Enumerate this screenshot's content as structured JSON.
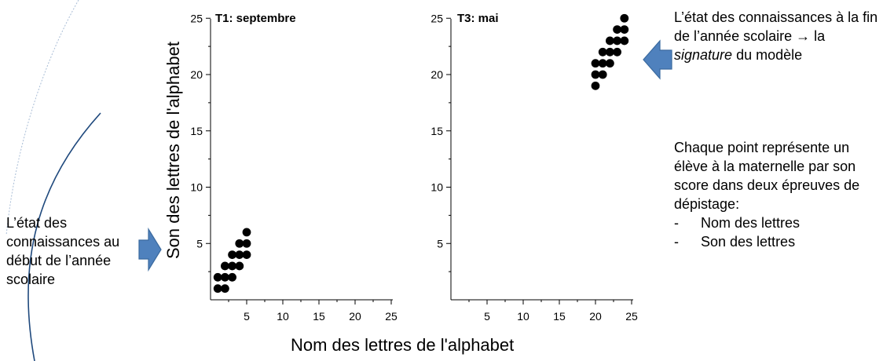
{
  "chart_data": [
    {
      "type": "scatter",
      "title": "T1: septembre",
      "xlim": [
        0,
        25
      ],
      "ylim": [
        0,
        25
      ],
      "x_ticks": [
        5,
        10,
        15,
        20,
        25
      ],
      "y_ticks": [
        5,
        10,
        15,
        20,
        25
      ],
      "points": [
        {
          "x": 1,
          "y": 1
        },
        {
          "x": 2,
          "y": 1
        },
        {
          "x": 1,
          "y": 2
        },
        {
          "x": 2,
          "y": 2
        },
        {
          "x": 3,
          "y": 2
        },
        {
          "x": 2,
          "y": 3
        },
        {
          "x": 3,
          "y": 3
        },
        {
          "x": 4,
          "y": 3
        },
        {
          "x": 3,
          "y": 4
        },
        {
          "x": 4,
          "y": 4
        },
        {
          "x": 5,
          "y": 4
        },
        {
          "x": 4,
          "y": 5
        },
        {
          "x": 5,
          "y": 5
        },
        {
          "x": 5,
          "y": 6
        }
      ]
    },
    {
      "type": "scatter",
      "title": "T3: mai",
      "xlim": [
        0,
        25
      ],
      "ylim": [
        0,
        25
      ],
      "x_ticks": [
        5,
        10,
        15,
        20,
        25
      ],
      "y_ticks": [
        5,
        10,
        15,
        20,
        25
      ],
      "points": [
        {
          "x": 20,
          "y": 19
        },
        {
          "x": 20,
          "y": 20
        },
        {
          "x": 21,
          "y": 20
        },
        {
          "x": 20,
          "y": 21
        },
        {
          "x": 21,
          "y": 21
        },
        {
          "x": 22,
          "y": 21
        },
        {
          "x": 21,
          "y": 22
        },
        {
          "x": 22,
          "y": 22
        },
        {
          "x": 23,
          "y": 22
        },
        {
          "x": 22,
          "y": 23
        },
        {
          "x": 23,
          "y": 23
        },
        {
          "x": 24,
          "y": 23
        },
        {
          "x": 23,
          "y": 24
        },
        {
          "x": 24,
          "y": 24
        },
        {
          "x": 24,
          "y": 25
        }
      ]
    }
  ],
  "axis_labels": {
    "x": "Nom des lettres de l'alphabet",
    "y": "Son des lettres de l'alphabet"
  },
  "annotations": {
    "left": "L’état des connaissances au début de l’année scolaire",
    "top_right": {
      "before": "L’état des connaissances à la fin de l’année scolaire → la ",
      "emphasis": "signature",
      "after": " du modèle"
    },
    "right": {
      "intro": "Chaque point représente un élève à la maternelle par son score dans deux épreuves de dépistage:",
      "items": [
        "Nom des lettres",
        "Son des lettres"
      ]
    }
  },
  "colors": {
    "arrow": "#4f81bd",
    "arrow_edge": "#3a6a9f",
    "arc": "#1f497d",
    "points": "#000000"
  }
}
